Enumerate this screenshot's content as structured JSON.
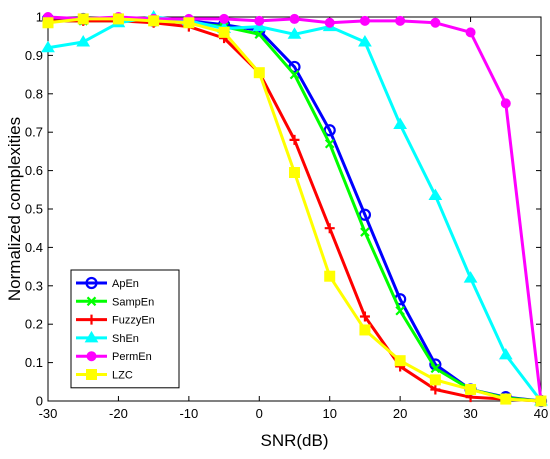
{
  "chart_data": {
    "type": "line",
    "title": "",
    "xlabel": "SNR(dB)",
    "ylabel": "Normalized complexities",
    "xlim": [
      -30,
      40
    ],
    "ylim": [
      0,
      1
    ],
    "xticks": [
      -30,
      -20,
      -10,
      0,
      10,
      20,
      30,
      40
    ],
    "yticks": [
      0,
      0.1,
      0.2,
      0.3,
      0.4,
      0.5,
      0.6,
      0.7,
      0.8,
      0.9,
      1
    ],
    "ytick_labels": [
      "0",
      "0.1",
      "0.2",
      "0.3",
      "0.4",
      "0.5",
      "0.6",
      "0.7",
      "0.8",
      "0.9",
      "1"
    ],
    "grid": false,
    "legend_position": "bottom-left",
    "x": [
      -30,
      -25,
      -20,
      -15,
      -10,
      -5,
      0,
      5,
      10,
      15,
      20,
      25,
      30,
      35,
      40
    ],
    "series": [
      {
        "name": "ApEn",
        "color": "#0000ff",
        "marker": "circle",
        "values": [
          0.995,
          0.995,
          0.995,
          0.99,
          0.99,
          0.98,
          0.965,
          0.87,
          0.705,
          0.485,
          0.265,
          0.095,
          0.03,
          0.01,
          0.0
        ]
      },
      {
        "name": "SampEn",
        "color": "#00ff00",
        "marker": "x",
        "values": [
          0.99,
          0.99,
          0.99,
          0.99,
          0.985,
          0.975,
          0.955,
          0.85,
          0.67,
          0.44,
          0.235,
          0.085,
          0.03,
          0.008,
          0.0
        ]
      },
      {
        "name": "FuzzyEn",
        "color": "#ff0000",
        "marker": "plus",
        "values": [
          0.99,
          0.99,
          0.99,
          0.985,
          0.975,
          0.945,
          0.855,
          0.68,
          0.45,
          0.22,
          0.09,
          0.03,
          0.01,
          0.005,
          0.0
        ]
      },
      {
        "name": "ShEn",
        "color": "#00ffff",
        "marker": "triangle",
        "values": [
          0.92,
          0.935,
          0.985,
          1.0,
          0.99,
          0.97,
          0.975,
          0.955,
          0.975,
          0.935,
          0.72,
          0.535,
          0.32,
          0.12,
          0.0
        ]
      },
      {
        "name": "PermEn",
        "color": "#ff00ff",
        "marker": "dot",
        "values": [
          1.0,
          0.995,
          1.0,
          0.995,
          0.995,
          0.995,
          0.99,
          0.995,
          0.985,
          0.99,
          0.99,
          0.985,
          0.96,
          0.775,
          0.0
        ]
      },
      {
        "name": "LZC",
        "color": "#ffff00",
        "marker": "square",
        "values": [
          0.985,
          0.995,
          0.995,
          0.99,
          0.985,
          0.96,
          0.855,
          0.595,
          0.325,
          0.185,
          0.105,
          0.055,
          0.03,
          0.005,
          0.0
        ]
      }
    ]
  }
}
